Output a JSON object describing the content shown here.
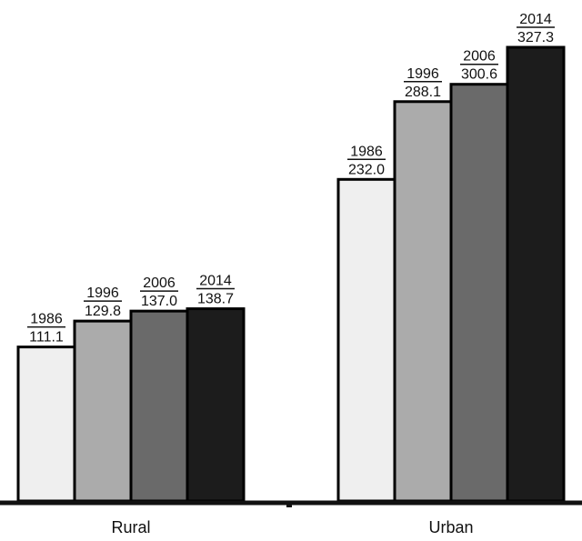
{
  "chart_data": {
    "type": "bar",
    "categories": [
      "Rural",
      "Urban"
    ],
    "series": [
      {
        "year": "1986",
        "values": [
          111.1,
          232.0
        ],
        "labels": [
          "111.1",
          "232.0"
        ],
        "color": "#efefef"
      },
      {
        "year": "1996",
        "values": [
          129.8,
          288.1
        ],
        "labels": [
          "129.8",
          "288.1"
        ],
        "color": "#ababab"
      },
      {
        "year": "2006",
        "values": [
          137.0,
          300.6
        ],
        "labels": [
          "137.0",
          "300.6"
        ],
        "color": "#6a6a6a"
      },
      {
        "year": "2014",
        "values": [
          138.7,
          327.3
        ],
        "labels": [
          "138.7",
          "327.3"
        ],
        "color": "#1c1c1c"
      }
    ],
    "ylim": [
      0,
      327.3
    ],
    "grid": false,
    "legend": "none"
  }
}
